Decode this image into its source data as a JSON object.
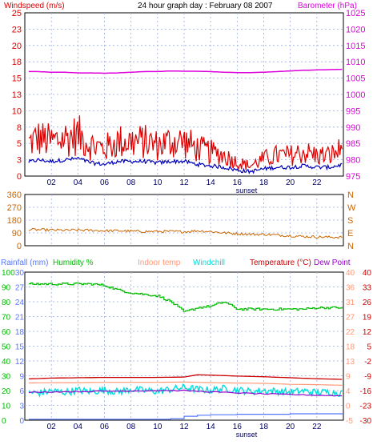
{
  "panel1": {
    "left_label": "Windspeed (m/s)",
    "title": "24 hour graph day : February 08 2007",
    "right_label": "Barometer (hPa)",
    "left_ticks": [
      "25",
      "23",
      "20",
      "18",
      "15",
      "13",
      "10",
      "8",
      "5",
      "3",
      "0"
    ],
    "right_ticks": [
      "1025",
      "1020",
      "1015",
      "1010",
      "1005",
      "1000",
      "995",
      "990",
      "985",
      "980",
      "975"
    ],
    "x_ticks": [
      "02",
      "04",
      "06",
      "08",
      "10",
      "12",
      "14",
      "16",
      "18",
      "20",
      "22"
    ],
    "sunset_label": "sunset"
  },
  "panel2": {
    "left_ticks": [
      "360",
      "270",
      "180",
      "90",
      "0"
    ],
    "right_ticks": [
      "N",
      "W",
      "S",
      "E",
      "N"
    ]
  },
  "panel3": {
    "legend": [
      "Rainfall (mm)",
      "Humidity %",
      "Indoor temp",
      "Windchill",
      "Temperature (°C)",
      "Dew Point"
    ],
    "rain_ticks": [
      "30",
      "27",
      "24",
      "21",
      "18",
      "15",
      "12",
      "9",
      "6",
      "3",
      "0"
    ],
    "hum_ticks": [
      "100",
      "90",
      "80",
      "70",
      "60",
      "50",
      "40",
      "30",
      "20",
      "10",
      "0"
    ],
    "temp_ticks": [
      "40",
      "36",
      "31",
      "27",
      "22",
      "18",
      "13",
      "9",
      "4",
      "0",
      "-5"
    ],
    "dew_ticks": [
      "40",
      "33",
      "26",
      "19",
      "12",
      "5",
      "-2",
      "-9",
      "-16",
      "-23",
      "-30"
    ],
    "x_ticks": [
      "02",
      "04",
      "06",
      "08",
      "10",
      "12",
      "14",
      "16",
      "18",
      "20",
      "22"
    ],
    "sunset_label": "sunset"
  },
  "colors": {
    "windspeed": "#dd0000",
    "avg_wind": "#0000bb",
    "barometer": "#dd00dd",
    "direction": "#cc6600",
    "humidity": "#00bb00",
    "rainfall": "#5577ff",
    "indoor": "#ff9977",
    "windchill": "#00dddd",
    "temperature": "#cc0000",
    "dewpoint": "#9900cc"
  },
  "chart_data": [
    {
      "type": "line",
      "x_range_hours": [
        0,
        24
      ],
      "left_ylim": [
        0,
        25
      ],
      "right_ylim": [
        975,
        1025
      ],
      "series": [
        {
          "name": "Windspeed (m/s)",
          "x": [
            0,
            1,
            2,
            3,
            4,
            5,
            6,
            7,
            8,
            9,
            10,
            11,
            12,
            13,
            14,
            15,
            16,
            17,
            18,
            19,
            20,
            21,
            22,
            23,
            24
          ],
          "values": [
            4.5,
            5.5,
            5,
            5.5,
            6,
            4.5,
            4,
            5,
            5,
            5,
            4.5,
            5,
            5,
            4,
            3.5,
            3,
            2,
            1.5,
            2.5,
            3,
            3,
            3.5,
            3,
            3,
            4
          ]
        },
        {
          "name": "Barometer (hPa)",
          "x": [
            0,
            1,
            2,
            3,
            4,
            5,
            6,
            7,
            8,
            9,
            10,
            11,
            12,
            13,
            14,
            15,
            16,
            17,
            18,
            19,
            20,
            21,
            22,
            23,
            24
          ],
          "values": [
            1007,
            1007,
            1006.8,
            1006.8,
            1006.6,
            1006.6,
            1006.5,
            1006.6,
            1006.8,
            1007,
            1007,
            1007.2,
            1007.1,
            1007.1,
            1007,
            1006.8,
            1006.7,
            1006.7,
            1006.8,
            1007,
            1007.2,
            1007.4,
            1007.5,
            1007.6,
            1007.7
          ]
        }
      ]
    },
    {
      "type": "line",
      "x_range_hours": [
        0,
        24
      ],
      "ylim": [
        0,
        360
      ],
      "series": [
        {
          "name": "Wind direction",
          "x": [
            0,
            1,
            2,
            3,
            4,
            5,
            6,
            7,
            8,
            9,
            10,
            11,
            12,
            13,
            14,
            15,
            16,
            17,
            18,
            19,
            20,
            21,
            22,
            23,
            24
          ],
          "values": [
            115,
            112,
            110,
            108,
            110,
            108,
            105,
            105,
            102,
            100,
            100,
            100,
            98,
            105,
            100,
            90,
            85,
            80,
            80,
            75,
            70,
            65,
            62,
            60,
            60
          ]
        }
      ]
    },
    {
      "type": "line",
      "x_range_hours": [
        0,
        24
      ],
      "series": [
        {
          "name": "Rainfall (mm)",
          "x": [
            0,
            10,
            11,
            12,
            13,
            14,
            16,
            18,
            20,
            22,
            24
          ],
          "values": [
            0.2,
            0.2,
            0.3,
            0.8,
            1.0,
            1.1,
            1.2,
            1.2,
            1.3,
            1.3,
            1.3
          ]
        },
        {
          "name": "Humidity %",
          "x": [
            0,
            1,
            2,
            3,
            4,
            5,
            6,
            7,
            8,
            9,
            10,
            11,
            12,
            13,
            14,
            15,
            16,
            17,
            18,
            19,
            20,
            21,
            22,
            23,
            24
          ],
          "values": [
            92,
            92,
            92,
            92,
            92,
            92,
            91,
            88,
            86,
            85,
            84,
            80,
            73,
            76,
            77,
            80,
            75,
            75,
            75,
            75,
            75,
            75,
            76,
            76,
            76
          ]
        },
        {
          "name": "Indoor temp",
          "x": [
            0,
            2,
            4,
            6,
            8,
            10,
            12,
            14,
            16,
            18,
            20,
            22,
            24
          ],
          "values": [
            6.3,
            6.4,
            6.4,
            6.5,
            6.5,
            6.5,
            6.6,
            6.4,
            6.3,
            6.2,
            5.9,
            5.8,
            5.6
          ]
        },
        {
          "name": "Windchill",
          "x": [
            0,
            1,
            2,
            3,
            4,
            5,
            6,
            7,
            8,
            9,
            10,
            11,
            12,
            13,
            14,
            15,
            16,
            17,
            18,
            19,
            20,
            21,
            22,
            23,
            24
          ],
          "values": [
            3.6,
            3.2,
            3.9,
            3.5,
            4.1,
            3.7,
            4.2,
            3.6,
            4.4,
            4.0,
            3.8,
            4.4,
            4.9,
            4.4,
            4.1,
            4.6,
            4.2,
            3.7,
            4.0,
            3.8,
            3.5,
            3.9,
            3.4,
            3.6,
            3.2
          ]
        },
        {
          "name": "Temperature (°C)",
          "x": [
            0,
            2,
            4,
            6,
            8,
            10,
            12,
            13,
            14,
            16,
            18,
            20,
            22,
            24
          ],
          "values": [
            7.5,
            7.8,
            7.9,
            8.0,
            8.0,
            8.0,
            8.1,
            8.8,
            8.7,
            8.4,
            8.2,
            7.9,
            7.6,
            7.4
          ]
        },
        {
          "name": "Dew Point",
          "x": [
            0,
            2,
            4,
            6,
            8,
            10,
            12,
            14,
            16,
            18,
            20,
            22,
            24
          ],
          "values": [
            3.4,
            3.6,
            3.7,
            3.8,
            3.9,
            4.0,
            4.0,
            3.6,
            3.3,
            3.0,
            2.8,
            2.6,
            2.4
          ]
        }
      ]
    }
  ]
}
